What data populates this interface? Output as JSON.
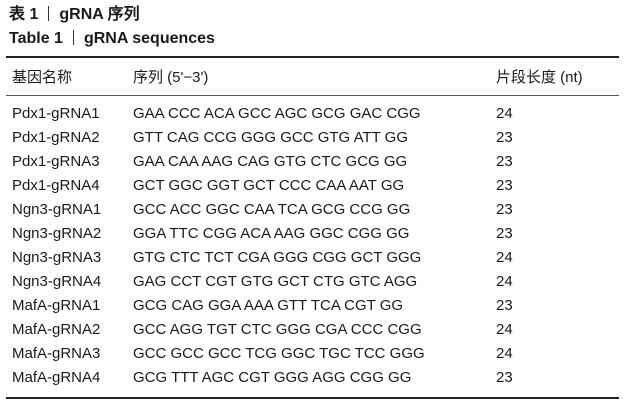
{
  "caption": {
    "zh_label": "表 1",
    "zh_title": "gRNA 序列",
    "en_label": "Table 1",
    "en_title": "gRNA sequences"
  },
  "table": {
    "headers": [
      "基因名称",
      "序列 (5'−3')",
      "片段长度 (nt)"
    ],
    "rows": [
      [
        "Pdx1-gRNA1",
        "GAA CCC ACA GCC AGC GCG GAC CGG",
        "24"
      ],
      [
        "Pdx1-gRNA2",
        "GTT CAG CCG GGG GCC GTG ATT GG",
        "23"
      ],
      [
        "Pdx1-gRNA3",
        "GAA CAA AAG CAG GTG CTC GCG GG",
        "23"
      ],
      [
        "Pdx1-gRNA4",
        "GCT GGC GGT GCT CCC CAA AAT GG",
        "23"
      ],
      [
        "Ngn3-gRNA1",
        "GCC ACC GGC CAA TCA GCG CCG GG",
        "23"
      ],
      [
        "Ngn3-gRNA2",
        "GGA TTC CGG ACA AAG GGC CGG GG",
        "23"
      ],
      [
        "Ngn3-gRNA3",
        "GTG CTC TCT CGA GGG CGG GCT GGG",
        "24"
      ],
      [
        "Ngn3-gRNA4",
        "GAG CCT CGT GTG GCT CTG GTC AGG",
        "24"
      ],
      [
        "MafA-gRNA1",
        "GCG CAG GGA AAA GTT TCA CGT GG",
        "23"
      ],
      [
        "MafA-gRNA2",
        "GCC AGG TGT CTC GGG CGA CCC CGG",
        "24"
      ],
      [
        "MafA-gRNA3",
        "GCC GCC GCC TCG GGC TGC TCC GGG",
        "24"
      ],
      [
        "MafA-gRNA4",
        "GCG TTT AGC CGT GGG AGG CGG GG",
        "23"
      ]
    ]
  }
}
